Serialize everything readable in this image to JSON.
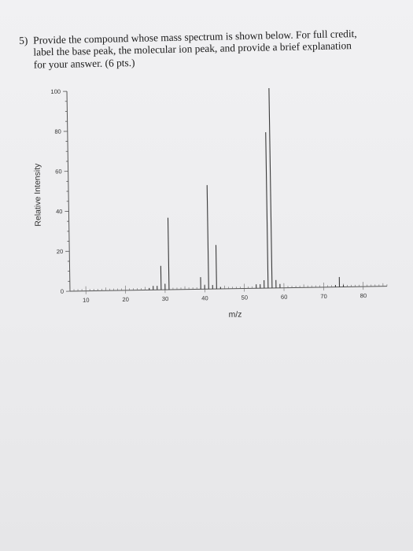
{
  "question": {
    "number": "5)",
    "lines": [
      "Provide the compound whose mass spectrum is shown below. For full credit,",
      "label the base peak, the molecular ion peak, and provide a brief explanation",
      "for your answer. (6 pts.)"
    ]
  },
  "chart_data": {
    "type": "bar",
    "xlabel": "m/z",
    "ylabel": "Relative Intensity",
    "xlim": [
      6,
      86
    ],
    "ylim": [
      0,
      100
    ],
    "xticks": [
      "10",
      "20",
      "30",
      "40",
      "50",
      "60",
      "70",
      "80"
    ],
    "yticks": [
      "0",
      "20",
      "40",
      "60",
      "80",
      "100"
    ],
    "peaks": [
      {
        "mz": 26,
        "intensity": 1
      },
      {
        "mz": 27,
        "intensity": 2
      },
      {
        "mz": 28,
        "intensity": 2
      },
      {
        "mz": 29,
        "intensity": 12
      },
      {
        "mz": 30,
        "intensity": 3
      },
      {
        "mz": 31,
        "intensity": 36
      },
      {
        "mz": 39,
        "intensity": 6
      },
      {
        "mz": 40,
        "intensity": 2
      },
      {
        "mz": 41,
        "intensity": 52
      },
      {
        "mz": 42,
        "intensity": 2
      },
      {
        "mz": 43,
        "intensity": 22
      },
      {
        "mz": 44,
        "intensity": 1
      },
      {
        "mz": 53,
        "intensity": 2
      },
      {
        "mz": 54,
        "intensity": 2
      },
      {
        "mz": 55,
        "intensity": 4
      },
      {
        "mz": 56,
        "intensity": 78
      },
      {
        "mz": 57,
        "intensity": 100
      },
      {
        "mz": 58,
        "intensity": 4
      },
      {
        "mz": 59,
        "intensity": 2
      },
      {
        "mz": 73,
        "intensity": 1
      },
      {
        "mz": 74,
        "intensity": 5
      },
      {
        "mz": 75,
        "intensity": 1
      }
    ]
  }
}
